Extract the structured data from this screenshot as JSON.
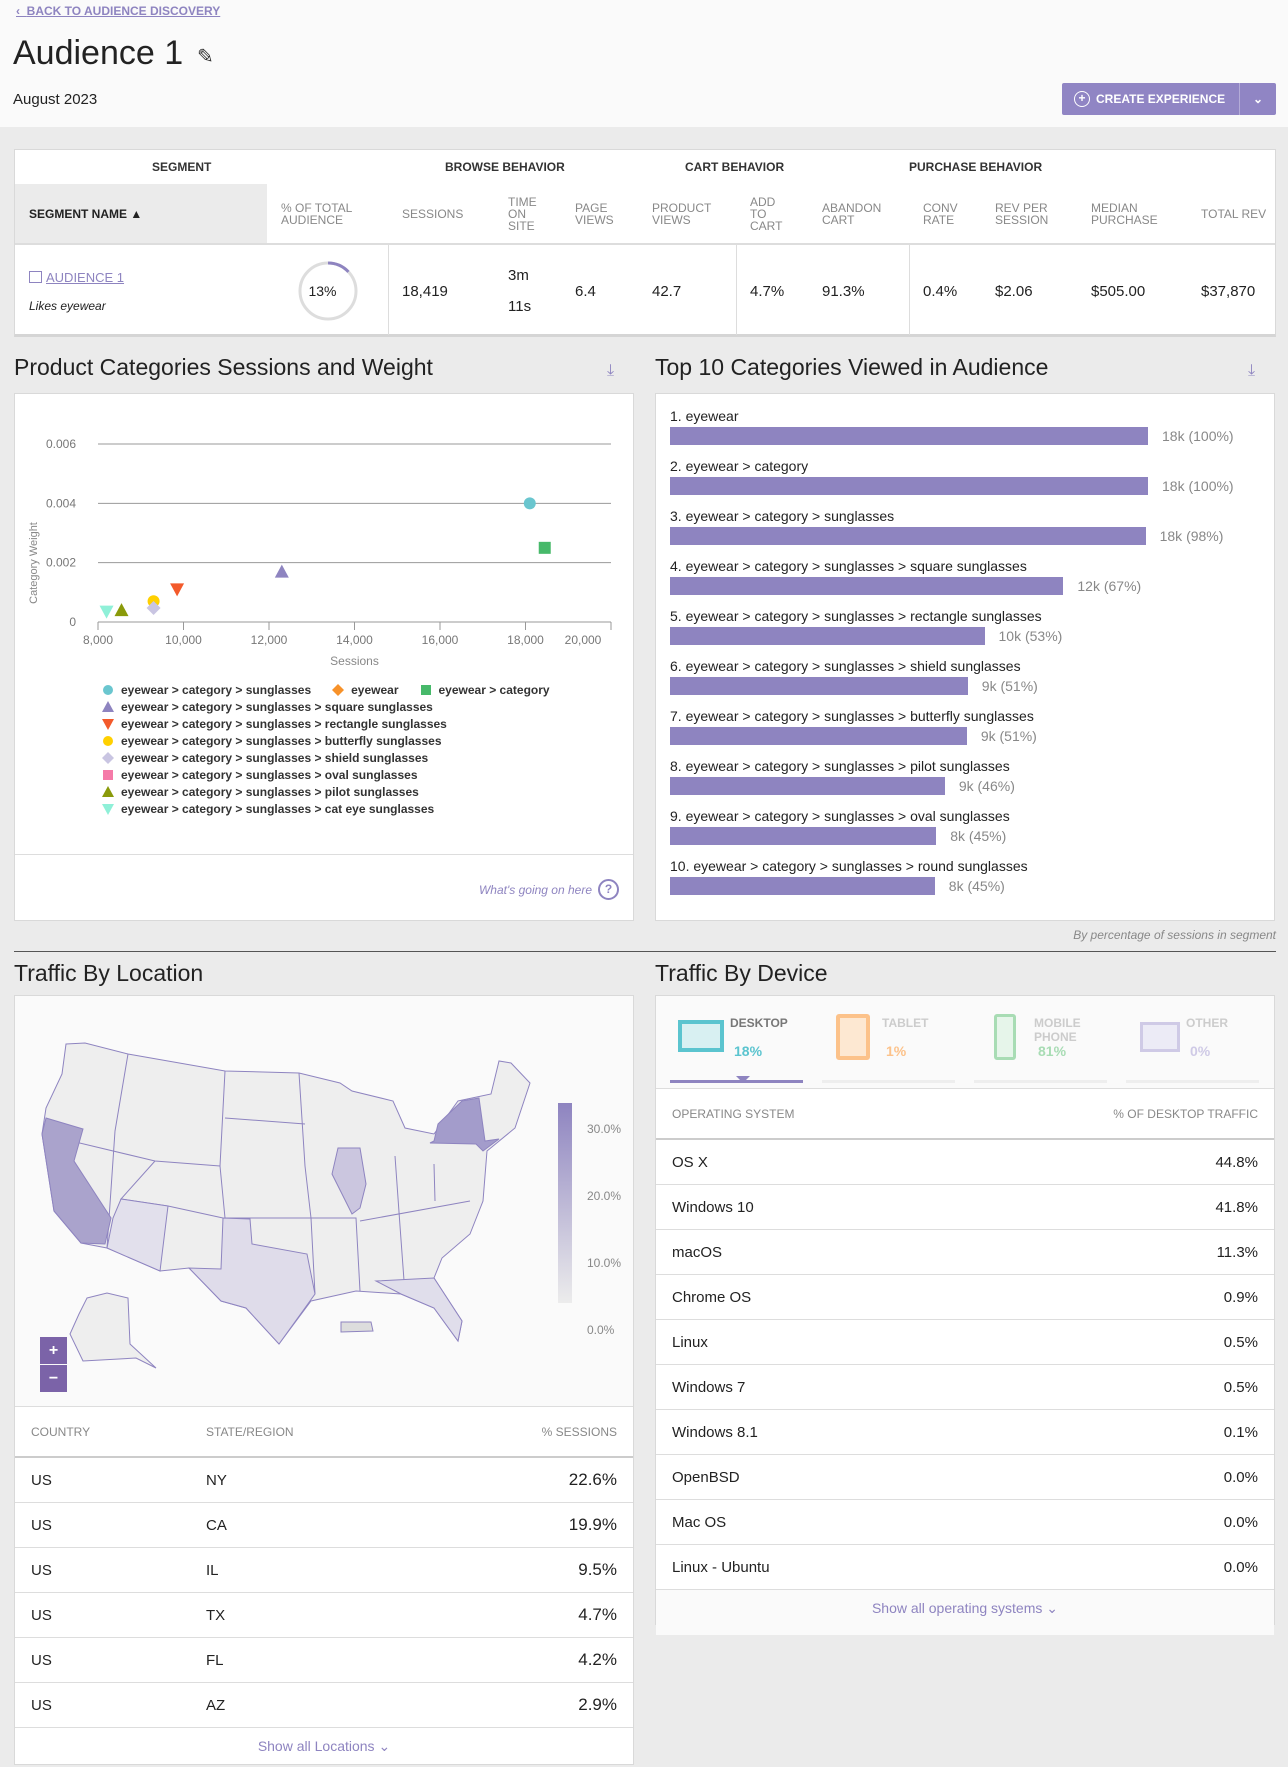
{
  "header": {
    "back": "Back to Audience Discovery",
    "title": "Audience 1",
    "date": "August 2023",
    "cta": "CREATE EXPERIENCE"
  },
  "segment_table": {
    "groups": [
      "SEGMENT",
      "BROWSE BEHAVIOR",
      "CART BEHAVIOR",
      "PURCHASE BEHAVIOR"
    ],
    "columns": [
      "Segment Name ▲",
      "% of Total Audience",
      "Sessions",
      "Time On Site",
      "Page Views",
      "Product Views",
      "Add To Cart",
      "Abandon Cart",
      "Conv Rate",
      "Rev Per Session",
      "Median Purchase",
      "Total Rev"
    ],
    "row": {
      "name": "AUDIENCE 1",
      "desc": "Likes eyewear",
      "pct": "13%",
      "pct_value": 13,
      "sessions": "18,419",
      "time1": "3m",
      "time2": "11s",
      "page_views": "6.4",
      "product_views": "42.7",
      "add_to_cart": "4.7%",
      "abandon": "91.3%",
      "conv": "0.4%",
      "rev_per_session": "$2.06",
      "median": "$505.00",
      "total_rev": "$37,870"
    }
  },
  "scatter": {
    "title": "Product Categories Sessions and Weight",
    "help": "What's going on here"
  },
  "chart_data": {
    "type": "scatter",
    "title": "Product Categories Sessions and Weight",
    "xlabel": "Sessions",
    "ylabel": "Category Weight",
    "xlim": [
      8000,
      20000
    ],
    "ylim": [
      0,
      0.006
    ],
    "xticks": [
      "8,000",
      "10,000",
      "12,000",
      "14,000",
      "16,000",
      "18,000",
      "20,000"
    ],
    "yticks": [
      "0",
      "0.002",
      "0.004",
      "0.006"
    ],
    "series": [
      {
        "name": "eyewear > category > sunglasses",
        "shape": "circle",
        "color": "#6ac6cf",
        "x": 18100,
        "y": 0.004
      },
      {
        "name": "eyewear",
        "shape": "diamond",
        "color": "#f7922a",
        "x": null,
        "y": null
      },
      {
        "name": "eyewear > category",
        "shape": "square",
        "color": "#47b96a",
        "x": 18450,
        "y": 0.0025
      },
      {
        "name": "eyewear > category > sunglasses > square sunglasses",
        "shape": "triangle",
        "color": "#8e84c0",
        "x": 12300,
        "y": 0.0017
      },
      {
        "name": "eyewear > category > sunglasses > rectangle sunglasses",
        "shape": "triangle-down",
        "color": "#f35a2b",
        "x": 9850,
        "y": 0.0011
      },
      {
        "name": "eyewear > category > sunglasses > butterfly sunglasses",
        "shape": "circle",
        "color": "#ffd000",
        "x": 9300,
        "y": 0.0007
      },
      {
        "name": "eyewear > category > sunglasses > shield sunglasses",
        "shape": "diamond",
        "color": "#c9c5e2",
        "x": 9300,
        "y": 0.00047
      },
      {
        "name": "eyewear > category > sunglasses > oval sunglasses",
        "shape": "square",
        "color": "#f57aa8",
        "x": null,
        "y": null
      },
      {
        "name": "eyewear > category > sunglasses > pilot sunglasses",
        "shape": "triangle",
        "color": "#8a9a0a",
        "x": 8550,
        "y": 0.0004
      },
      {
        "name": "eyewear > category > sunglasses > cat eye sunglasses",
        "shape": "triangle-down",
        "color": "#8ff0d8",
        "x": 8200,
        "y": 0.00035
      }
    ]
  },
  "top10": {
    "title": "Top 10 Categories Viewed in Audience",
    "note": "By percentage of sessions in segment",
    "items": [
      {
        "label": "1. eyewear",
        "value": "18k (100%)",
        "fill": 1.0
      },
      {
        "label": "2. eyewear > category",
        "value": "18k (100%)",
        "fill": 1.0
      },
      {
        "label": "3. eyewear > category > sunglasses",
        "value": "18k (98%)",
        "fill": 0.995
      },
      {
        "label": "4. eyewear > category > sunglasses > square sunglasses",
        "value": "12k (67%)",
        "fill": 0.823
      },
      {
        "label": "5. eyewear > category > sunglasses > rectangle sunglasses",
        "value": "10k (53%)",
        "fill": 0.658
      },
      {
        "label": "6. eyewear > category > sunglasses > shield sunglasses",
        "value": "9k (51%)",
        "fill": 0.623
      },
      {
        "label": "7. eyewear > category > sunglasses > butterfly sunglasses",
        "value": "9k (51%)",
        "fill": 0.621
      },
      {
        "label": "8. eyewear > category > sunglasses > pilot sunglasses",
        "value": "9k (46%)",
        "fill": 0.575
      },
      {
        "label": "9. eyewear > category > sunglasses > oval sunglasses",
        "value": "8k (45%)",
        "fill": 0.557
      },
      {
        "label": "10. eyewear > category > sunglasses > round sunglasses",
        "value": "8k (45%)",
        "fill": 0.554
      }
    ]
  },
  "location": {
    "title": "Traffic By Location",
    "legend": [
      "30.0%",
      "20.0%",
      "10.0%",
      "0.0%"
    ],
    "zoom_in": "+",
    "zoom_out": "−",
    "headers": [
      "COUNTRY",
      "STATE/REGION",
      "% SESSIONS"
    ],
    "rows": [
      [
        "US",
        "NY",
        "22.6%"
      ],
      [
        "US",
        "CA",
        "19.9%"
      ],
      [
        "US",
        "IL",
        "9.5%"
      ],
      [
        "US",
        "TX",
        "4.7%"
      ],
      [
        "US",
        "FL",
        "4.2%"
      ],
      [
        "US",
        "AZ",
        "2.9%"
      ]
    ],
    "show_all": "Show all Locations ⌄"
  },
  "device": {
    "title": "Traffic By Device",
    "tabs": [
      {
        "name": "DESKTOP",
        "pct": "18%",
        "color": "#5bc4cf"
      },
      {
        "name": "TABLET",
        "pct": "1%",
        "color": "#fcc28a"
      },
      {
        "name": "MOBILE PHONE",
        "pct": "81%",
        "color": "#a8dcb4"
      },
      {
        "name": "OTHER",
        "pct": "0%",
        "color": "#cfcae6"
      }
    ],
    "headers": [
      "OPERATING SYSTEM",
      "% OF DESKTOP TRAFFIC"
    ],
    "rows": [
      [
        "OS X",
        "44.8%"
      ],
      [
        "Windows 10",
        "41.8%"
      ],
      [
        "macOS",
        "11.3%"
      ],
      [
        "Chrome OS",
        "0.9%"
      ],
      [
        "Linux",
        "0.5%"
      ],
      [
        "Windows 7",
        "0.5%"
      ],
      [
        "Windows 8.1",
        "0.1%"
      ],
      [
        "OpenBSD",
        "0.0%"
      ],
      [
        "Mac OS",
        "0.0%"
      ],
      [
        "Linux - Ubuntu",
        "0.0%"
      ]
    ],
    "show_all": "Show all operating systems ⌄"
  },
  "colors": {
    "accent": "#8e84c0",
    "button": "#9085c4"
  }
}
